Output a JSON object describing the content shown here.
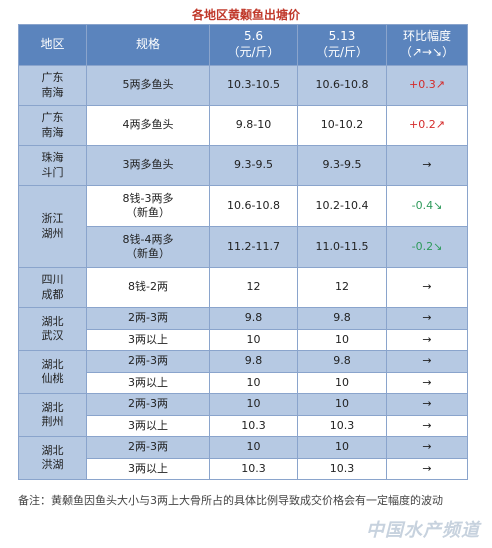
{
  "title": "各地区黄颡鱼出塘价",
  "headers": {
    "region": "地区",
    "spec": "规格",
    "date1": "5.6",
    "date1_unit": "（元/斤）",
    "date2": "5.13",
    "date2_unit": "（元/斤）",
    "change": "环比幅度",
    "change_sub": "（↗→↘）"
  },
  "rows": [
    {
      "region": "广东\n南海",
      "spec": "5两多鱼头",
      "p1": "10.3-10.5",
      "p2": "10.6-10.8",
      "change": "+0.3↗",
      "trend": "up"
    },
    {
      "region": "广东\n南海",
      "spec": "4两多鱼头",
      "p1": "9.8-10",
      "p2": "10-10.2",
      "change": "+0.2↗",
      "trend": "up"
    },
    {
      "region": "珠海\n斗门",
      "spec": "3两多鱼头",
      "p1": "9.3-9.5",
      "p2": "9.3-9.5",
      "change": "→",
      "trend": "flat"
    },
    {
      "region": "浙江\n湖州",
      "spec": "8钱-3两多\n（新鱼）",
      "p1": "10.6-10.8",
      "p2": "10.2-10.4",
      "change": "-0.4↘",
      "trend": "down"
    },
    {
      "region": "",
      "spec": "8钱-4两多\n（新鱼）",
      "p1": "11.2-11.7",
      "p2": "11.0-11.5",
      "change": "-0.2↘",
      "trend": "down"
    },
    {
      "region": "四川\n成都",
      "spec": "8钱-2两",
      "p1": "12",
      "p2": "12",
      "change": "→",
      "trend": "flat"
    },
    {
      "region": "湖北\n武汉",
      "spec": "2两-3两",
      "p1": "9.8",
      "p2": "9.8",
      "change": "→",
      "trend": "flat"
    },
    {
      "region": "",
      "spec": "3两以上",
      "p1": "10",
      "p2": "10",
      "change": "→",
      "trend": "flat"
    },
    {
      "region": "湖北\n仙桃",
      "spec": "2两-3两",
      "p1": "9.8",
      "p2": "9.8",
      "change": "→",
      "trend": "flat"
    },
    {
      "region": "",
      "spec": "3两以上",
      "p1": "10",
      "p2": "10",
      "change": "→",
      "trend": "flat"
    },
    {
      "region": "湖北\n荆州",
      "spec": "2两-3两",
      "p1": "10",
      "p2": "10",
      "change": "→",
      "trend": "flat"
    },
    {
      "region": "",
      "spec": "3两以上",
      "p1": "10.3",
      "p2": "10.3",
      "change": "→",
      "trend": "flat"
    },
    {
      "region": "湖北\n洪湖",
      "spec": "2两-3两",
      "p1": "10",
      "p2": "10",
      "change": "→",
      "trend": "flat"
    },
    {
      "region": "",
      "spec": "3两以上",
      "p1": "10.3",
      "p2": "10.3",
      "change": "→",
      "trend": "flat"
    }
  ],
  "note": "备注：黄颡鱼因鱼头大小与3两上大骨所占的具体比例导致成交价格会有一定幅度的波动",
  "watermark": "中国水产频道",
  "colors": {
    "header": "#5b84bd",
    "band": "#b6c9e3",
    "up": "#d42c2c",
    "down": "#2e9a5b"
  }
}
